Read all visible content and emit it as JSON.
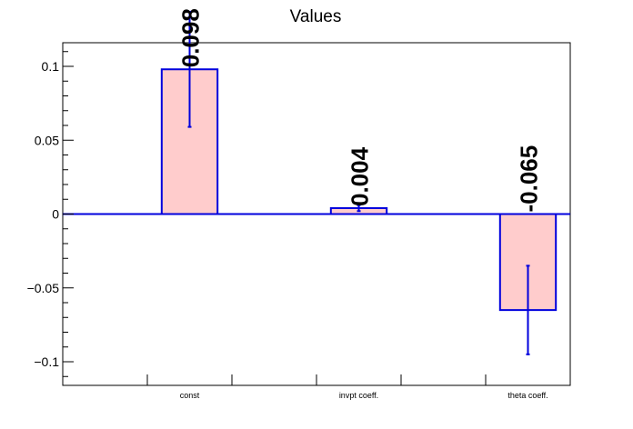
{
  "chart_data": {
    "type": "bar",
    "title": "Values",
    "xlabel": "",
    "ylabel": "",
    "categories": [
      "const",
      "invpt coeff.",
      "theta coeff."
    ],
    "values": [
      0.098,
      0.004,
      -0.065
    ],
    "errors": [
      0.039,
      0.002,
      0.03
    ],
    "data_labels": [
      "0.098",
      "0.004",
      "-0.065"
    ],
    "ylim": [
      -0.116,
      0.116
    ],
    "yticks": [
      -0.1,
      -0.05,
      0,
      0.05,
      0.1
    ],
    "ytick_labels": [
      "−0.1",
      "−0.05",
      "0",
      "0.05",
      "0.1"
    ],
    "grid": false,
    "colors": {
      "bar_fill": "#ffcccc",
      "bar_edge": "#0000dd",
      "zero_line": "#0000dd",
      "axis": "#000000"
    }
  }
}
